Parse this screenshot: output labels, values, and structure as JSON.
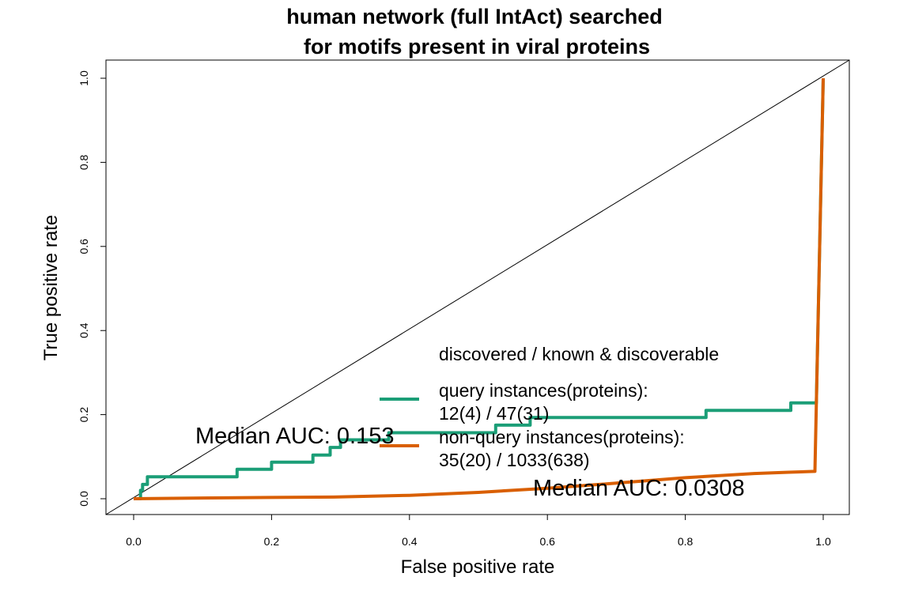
{
  "chart_data": {
    "type": "line",
    "title_line1": "human network (full IntAct) searched",
    "title_line2": "for motifs present in viral proteins",
    "xlabel": "False positive rate",
    "ylabel": "True positive rate",
    "xlim": [
      0,
      1
    ],
    "ylim": [
      0,
      1
    ],
    "xticks": [
      "0.0",
      "0.2",
      "0.4",
      "0.6",
      "0.8",
      "1.0"
    ],
    "yticks": [
      "0.0",
      "0.2",
      "0.4",
      "0.6",
      "0.8",
      "1.0"
    ],
    "grid": false,
    "diagonal_reference": true,
    "legend": {
      "title": "discovered / known & discoverable",
      "placement": "center-right",
      "entries": [
        {
          "line1": "query instances(proteins):",
          "line2": "12(4) / 47(31)"
        },
        {
          "line1": "non-query instances(proteins):",
          "line2": "35(20) / 1033(638)"
        }
      ]
    },
    "annotations": {
      "median_auc_query": "Median AUC: 0.153",
      "median_auc_nonquery": "Median AUC: 0.0308"
    },
    "series": [
      {
        "color": "#1b9e77",
        "points": [
          [
            0,
            0
          ],
          [
            0.01,
            0
          ],
          [
            0.01,
            0.02
          ],
          [
            0.013,
            0.02
          ],
          [
            0.013,
            0.034
          ],
          [
            0.02,
            0.034
          ],
          [
            0.02,
            0.052
          ],
          [
            0.15,
            0.052
          ],
          [
            0.15,
            0.07
          ],
          [
            0.2,
            0.07
          ],
          [
            0.2,
            0.087
          ],
          [
            0.26,
            0.087
          ],
          [
            0.26,
            0.104
          ],
          [
            0.285,
            0.104
          ],
          [
            0.285,
            0.122
          ],
          [
            0.3,
            0.122
          ],
          [
            0.3,
            0.14
          ],
          [
            0.37,
            0.14
          ],
          [
            0.37,
            0.157
          ],
          [
            0.525,
            0.157
          ],
          [
            0.525,
            0.175
          ],
          [
            0.575,
            0.175
          ],
          [
            0.575,
            0.193
          ],
          [
            0.83,
            0.193
          ],
          [
            0.83,
            0.21
          ],
          [
            0.953,
            0.21
          ],
          [
            0.953,
            0.228
          ],
          [
            0.99,
            0.228
          ],
          [
            1.0,
            1.0
          ]
        ]
      },
      {
        "color": "#d95f02",
        "points": [
          [
            0,
            0
          ],
          [
            0.13,
            0.002
          ],
          [
            0.2,
            0.003
          ],
          [
            0.29,
            0.004
          ],
          [
            0.4,
            0.008
          ],
          [
            0.5,
            0.015
          ],
          [
            0.6,
            0.025
          ],
          [
            0.7,
            0.037
          ],
          [
            0.8,
            0.05
          ],
          [
            0.9,
            0.06
          ],
          [
            0.95,
            0.063
          ],
          [
            0.988,
            0.065
          ],
          [
            1.0,
            1.0
          ]
        ]
      }
    ]
  }
}
